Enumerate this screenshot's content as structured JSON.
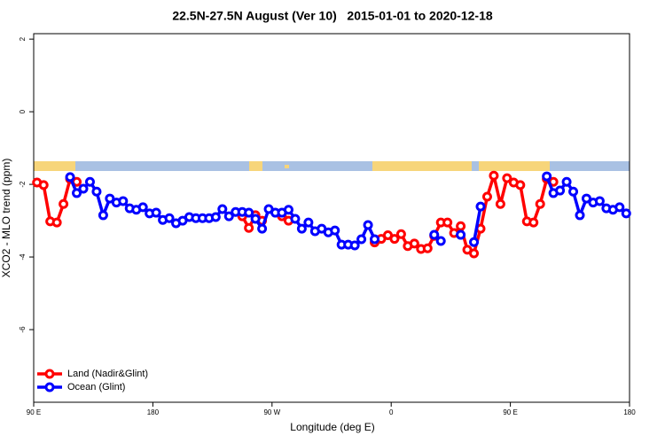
{
  "chart_data": {
    "type": "line",
    "title": "22.5N-27.5N August (Ver 10)   2015-01-01 to 2020-12-18",
    "xlabel": "Longitude (deg E)",
    "ylabel": "XCO2 - MLO trend (ppm)",
    "xlim": [
      90,
      540
    ],
    "ylim": [
      -8,
      2.15
    ],
    "xticks": [
      {
        "value": 90,
        "label": "90 E"
      },
      180,
      {
        "value": 270,
        "label": "90 W"
      },
      {
        "value": 360,
        "label": "0"
      },
      {
        "value": 450,
        "label": "90 E"
      },
      {
        "value": 540,
        "label": "180"
      }
    ],
    "yticks": [
      2,
      0,
      -2,
      -4,
      -6
    ],
    "legend": "bottom-left",
    "x": [
      92.5,
      97.5,
      102.5,
      107.5,
      112.5,
      117.5,
      122.5,
      127.5,
      132.5,
      137.5,
      142.5,
      147.5,
      152.5,
      157.5,
      162.5,
      167.5,
      172.5,
      177.5,
      182.5,
      187.5,
      192.5,
      197.5,
      202.5,
      207.5,
      212.5,
      217.5,
      222.5,
      227.5,
      232.5,
      237.5,
      242.5,
      247.5,
      252.5,
      257.5,
      262.5,
      267.5,
      272.5,
      277.5,
      282.5,
      287.5,
      292.5,
      297.5,
      302.5,
      307.5,
      312.5,
      317.5,
      322.5,
      327.5,
      332.5,
      337.5,
      342.5,
      347.5,
      352.5,
      357.5,
      362.5,
      367.5,
      372.5,
      377.5,
      382.5,
      387.5,
      392.5,
      397.5,
      402.5,
      407.5,
      412.5,
      417.5,
      422.5,
      427.5,
      432.5,
      437.5,
      442.5,
      447.5,
      452.5,
      457.5,
      462.5,
      467.5,
      472.5,
      477.5,
      482.5,
      487.5,
      492.5,
      497.5,
      502.5,
      507.5,
      512.5,
      517.5,
      522.5,
      527.5,
      532.5,
      537.5
    ],
    "series": [
      {
        "name": "Land (Nadir&Glint)",
        "color": "#ff0000",
        "values": [
          -1.95,
          -2.02,
          -3.02,
          -3.05,
          -2.54,
          -1.85,
          -1.93,
          null,
          null,
          null,
          null,
          null,
          null,
          null,
          null,
          null,
          null,
          null,
          null,
          null,
          null,
          null,
          null,
          null,
          null,
          null,
          null,
          null,
          null,
          null,
          null,
          -2.88,
          -3.2,
          -2.85,
          -3.0,
          null,
          null,
          -2.88,
          -3.0,
          null,
          null,
          null,
          null,
          null,
          null,
          null,
          null,
          null,
          null,
          null,
          null,
          -3.6,
          -3.5,
          -3.4,
          -3.5,
          -3.37,
          -3.7,
          -3.63,
          -3.78,
          -3.76,
          -3.42,
          -3.05,
          -3.05,
          -3.34,
          -3.15,
          -3.8,
          -3.9,
          -3.22,
          -2.34,
          -1.76,
          -2.54,
          -1.83,
          -1.95,
          -2.02,
          -3.02,
          -3.05,
          -2.54,
          -1.85,
          -1.93,
          null,
          null,
          null,
          null,
          null,
          null,
          null,
          null,
          null,
          null,
          null
        ]
      },
      {
        "name": "Ocean (Glint)",
        "color": "#0000ff",
        "values": [
          null,
          null,
          null,
          null,
          null,
          -1.8,
          -2.24,
          -2.12,
          -1.93,
          -2.2,
          -2.85,
          -2.39,
          -2.5,
          -2.46,
          -2.66,
          -2.7,
          -2.63,
          -2.8,
          -2.78,
          -2.98,
          -2.93,
          -3.07,
          -3.0,
          -2.9,
          -2.93,
          -2.93,
          -2.93,
          -2.9,
          -2.68,
          -2.88,
          -2.76,
          -2.76,
          -2.78,
          -2.95,
          -3.22,
          -2.68,
          -2.78,
          -2.78,
          -2.7,
          -2.95,
          -3.22,
          -3.05,
          -3.29,
          -3.22,
          -3.32,
          -3.27,
          -3.66,
          -3.66,
          -3.68,
          -3.51,
          -3.12,
          -3.51,
          null,
          null,
          null,
          null,
          null,
          null,
          null,
          null,
          -3.39,
          -3.56,
          null,
          null,
          -3.39,
          null,
          -3.59,
          -2.61,
          null,
          null,
          null,
          null,
          null,
          null,
          null,
          null,
          null,
          -1.78,
          -2.24,
          -2.17,
          -1.93,
          -2.2,
          -2.85,
          -2.39,
          -2.5,
          -2.46,
          -2.66,
          -2.7,
          -2.63,
          -2.8
        ]
      }
    ]
  }
}
